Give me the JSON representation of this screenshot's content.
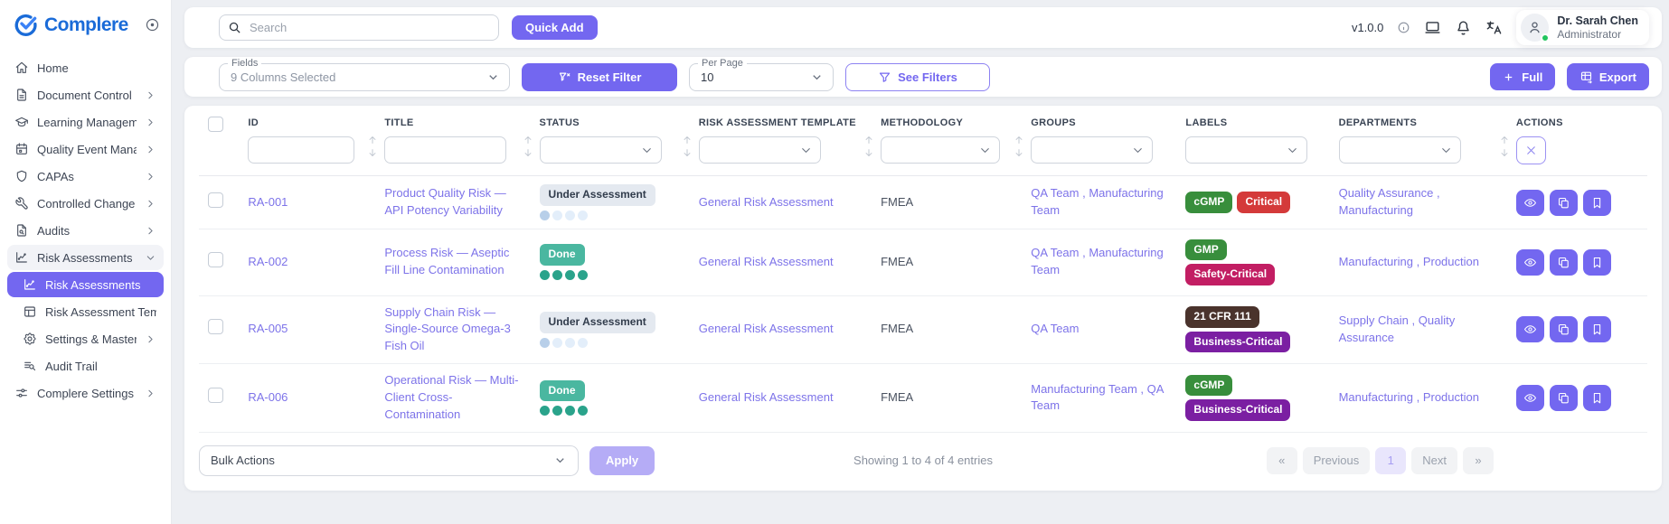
{
  "theme": {
    "accent": "#7367f0",
    "done": "#4ab7a0",
    "brand_blue": "#1a6bd8",
    "link": "#7d73e9",
    "presence_green": "#22c55e"
  },
  "sidebar": {
    "brand": "Complere",
    "items": [
      {
        "label": "Home",
        "icon": "home-icon"
      },
      {
        "label": "Document Control",
        "icon": "document-icon",
        "chevron": "right"
      },
      {
        "label": "Learning Managemen...",
        "icon": "graduation-icon",
        "chevron": "right"
      },
      {
        "label": "Quality Event Manage...",
        "icon": "calendar-icon",
        "chevron": "right"
      },
      {
        "label": "CAPAs",
        "icon": "shield-icon",
        "chevron": "right"
      },
      {
        "label": "Controlled Change",
        "icon": "wrench-icon",
        "chevron": "right"
      },
      {
        "label": "Audits",
        "icon": "audit-file-icon",
        "chevron": "right"
      },
      {
        "label": "Risk Assessments",
        "icon": "chart-icon",
        "chevron": "down",
        "expanded": true,
        "children": [
          {
            "label": "Risk Assessments",
            "icon": "chart-icon",
            "active": true
          },
          {
            "label": "Risk Assessment Temp...",
            "icon": "template-icon"
          },
          {
            "label": "Settings & Master",
            "icon": "gear-icon",
            "chevron": "right"
          },
          {
            "label": "Audit Trail",
            "icon": "audit-trail-icon"
          }
        ]
      },
      {
        "label": "Complere Settings",
        "icon": "sliders-icon",
        "chevron": "right"
      }
    ]
  },
  "topbar": {
    "search_placeholder": "Search",
    "quick_add_label": "Quick Add",
    "version": "v1.0.0",
    "icons": [
      "info-icon",
      "laptop-icon",
      "bell-icon",
      "translate-icon"
    ],
    "user": {
      "name": "Dr. Sarah Chen",
      "role": "Administrator"
    }
  },
  "filters": {
    "fields_label": "Fields",
    "fields_value": "9 Columns Selected",
    "reset_label": "Reset Filter",
    "per_page_label": "Per Page",
    "per_page_value": "10",
    "see_filters_label": "See Filters",
    "full_label": "Full",
    "export_label": "Export"
  },
  "table": {
    "columns": [
      {
        "label": "ID",
        "filter": "input",
        "sortable": true
      },
      {
        "label": "TITLE",
        "filter": "input",
        "sortable": true
      },
      {
        "label": "STATUS",
        "filter": "select",
        "sortable": true
      },
      {
        "label": "RISK ASSESSMENT TEMPLATE",
        "filter": "select",
        "sortable": true
      },
      {
        "label": "METHODOLOGY",
        "filter": "select",
        "sortable": true
      },
      {
        "label": "GROUPS",
        "filter": "select",
        "sortable": false
      },
      {
        "label": "LABELS",
        "filter": "select",
        "sortable": false
      },
      {
        "label": "DEPARTMENTS",
        "filter": "select",
        "sortable": true
      },
      {
        "label": "ACTIONS",
        "filter": "clear",
        "sortable": false
      }
    ],
    "row_actions": [
      {
        "name": "view-button",
        "icon": "eye-icon"
      },
      {
        "name": "duplicate-button",
        "icon": "copy-icon"
      },
      {
        "name": "bookmark-button",
        "icon": "bookmark-icon"
      }
    ],
    "rows": [
      {
        "id": "RA-001",
        "title": "Product Quality Risk — API Potency Variability",
        "status": {
          "label": "Under Assessment",
          "variant": "pending",
          "progress": 1,
          "total": 4
        },
        "template": "General Risk Assessment",
        "methodology": "FMEA",
        "groups": [
          "QA Team",
          "Manufacturing Team"
        ],
        "labels": [
          {
            "text": "cGMP",
            "color": "#388e3c"
          },
          {
            "text": "Critical",
            "color": "#d43a3a"
          }
        ],
        "departments": [
          "Quality Assurance",
          "Manufacturing"
        ]
      },
      {
        "id": "RA-002",
        "title": "Process Risk — Aseptic Fill Line Contamination",
        "status": {
          "label": "Done",
          "variant": "done",
          "progress": 4,
          "total": 4
        },
        "template": "General Risk Assessment",
        "methodology": "FMEA",
        "groups": [
          "QA Team",
          "Manufacturing Team"
        ],
        "labels": [
          {
            "text": "GMP",
            "color": "#388e3c"
          },
          {
            "text": "Safety-Critical",
            "color": "#c21e63"
          }
        ],
        "departments": [
          "Manufacturing",
          "Production"
        ]
      },
      {
        "id": "RA-005",
        "title": "Supply Chain Risk — Single-Source Omega-3 Fish Oil",
        "status": {
          "label": "Under Assessment",
          "variant": "pending",
          "progress": 1,
          "total": 4
        },
        "template": "General Risk Assessment",
        "methodology": "FMEA",
        "groups": [
          "QA Team"
        ],
        "labels": [
          {
            "text": "21 CFR 111",
            "color": "#4a332c"
          },
          {
            "text": "Business-Critical",
            "color": "#7b1fa2"
          }
        ],
        "departments": [
          "Supply Chain",
          "Quality Assurance"
        ]
      },
      {
        "id": "RA-006",
        "title": "Operational Risk — Multi-Client Cross-Contamination",
        "status": {
          "label": "Done",
          "variant": "done",
          "progress": 4,
          "total": 4
        },
        "template": "General Risk Assessment",
        "methodology": "FMEA",
        "groups": [
          "Manufacturing Team",
          "QA Team"
        ],
        "labels": [
          {
            "text": "cGMP",
            "color": "#388e3c"
          },
          {
            "text": "Business-Critical",
            "color": "#7b1fa2"
          }
        ],
        "departments": [
          "Manufacturing",
          "Production"
        ]
      }
    ]
  },
  "footer": {
    "bulk_actions_label": "Bulk Actions",
    "apply_label": "Apply",
    "showing_text": "Showing 1 to 4 of 4 entries",
    "pagination": {
      "items": [
        {
          "label": "«",
          "name": "first-page-button"
        },
        {
          "label": "Previous",
          "name": "previous-page-button"
        },
        {
          "label": "1",
          "name": "page-1-button",
          "current": true
        },
        {
          "label": "Next",
          "name": "next-page-button"
        },
        {
          "label": "»",
          "name": "last-page-button"
        }
      ]
    }
  }
}
